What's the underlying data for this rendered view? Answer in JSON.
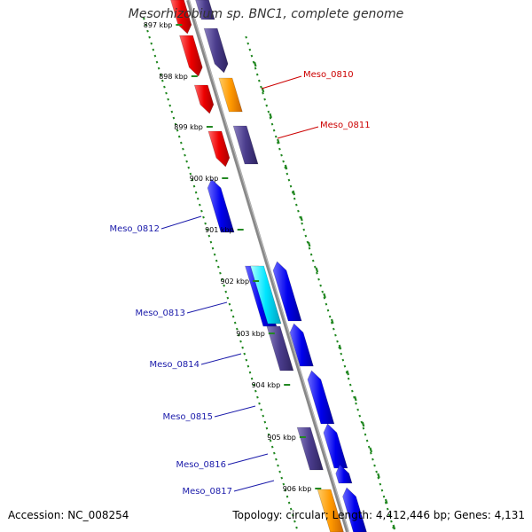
{
  "title": "Mesorhizobium sp. BNC1, complete genome",
  "footer": {
    "accession": "Accession: NC_008254",
    "summary": "Topology: circular; Length: 4,412,446 bp; Genes: 4,131"
  },
  "colors": {
    "red": "#ee0000",
    "purple": "#4a3c8c",
    "orange": "#ff9900",
    "blue": "#0000ee",
    "cyan": "#00e5ff",
    "backbone": "#888888",
    "ruler": "#228822",
    "label_red": "#cc0000",
    "label_blue": "#1a1aaa"
  },
  "ticks": [
    {
      "label": "897 kbp"
    },
    {
      "label": "898 kbp"
    },
    {
      "label": "899 kbp"
    },
    {
      "label": "900 kbp"
    },
    {
      "label": "901 kbp"
    },
    {
      "label": "902 kbp"
    },
    {
      "label": "903 kbp"
    },
    {
      "label": "904 kbp"
    },
    {
      "label": "905 kbp"
    },
    {
      "label": "906 kbp"
    }
  ],
  "gene_labels": [
    {
      "label": "Meso_0810",
      "side": "right",
      "color": "red"
    },
    {
      "label": "Meso_0811",
      "side": "right",
      "color": "red"
    },
    {
      "label": "Meso_0812",
      "side": "left",
      "color": "blue"
    },
    {
      "label": "Meso_0813",
      "side": "left",
      "color": "blue"
    },
    {
      "label": "Meso_0814",
      "side": "left",
      "color": "blue"
    },
    {
      "label": "Meso_0815",
      "side": "left",
      "color": "blue"
    },
    {
      "label": "Meso_0816",
      "side": "left",
      "color": "blue"
    },
    {
      "label": "Meso_0817",
      "side": "left",
      "color": "blue"
    }
  ]
}
